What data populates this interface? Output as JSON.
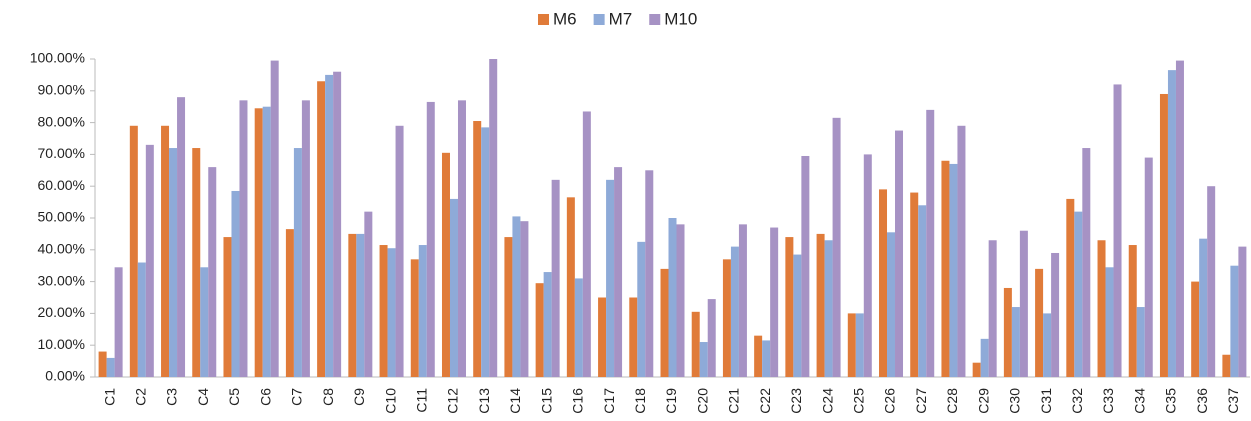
{
  "chart_data": {
    "type": "bar",
    "categories": [
      "C1",
      "C2",
      "C3",
      "C4",
      "C5",
      "C6",
      "C7",
      "C8",
      "C9",
      "C10",
      "C11",
      "C12",
      "C13",
      "C14",
      "C15",
      "C16",
      "C17",
      "C18",
      "C19",
      "C20",
      "C21",
      "C22",
      "C23",
      "C24",
      "C25",
      "C26",
      "C27",
      "C28",
      "C29",
      "C30",
      "C31",
      "C32",
      "C33",
      "C34",
      "C35",
      "C36",
      "C37"
    ],
    "series": [
      {
        "name": "M6",
        "color": "#e07b39",
        "values": [
          8,
          79,
          79,
          72,
          44,
          84.5,
          46.5,
          93,
          45,
          41.5,
          37,
          70.5,
          80.5,
          44,
          29.5,
          56.5,
          25,
          25,
          34,
          20.5,
          37,
          13,
          44,
          45,
          20,
          59,
          58,
          68,
          4.5,
          28,
          34,
          56,
          43,
          41.5,
          89,
          30,
          7
        ]
      },
      {
        "name": "M7",
        "color": "#8eaad8",
        "values": [
          6,
          36,
          72,
          34.5,
          58.5,
          85,
          72,
          95,
          45,
          40.5,
          41.5,
          56,
          78.5,
          50.5,
          33,
          31,
          62,
          42.5,
          50,
          11,
          41,
          11.5,
          38.5,
          43,
          20,
          45.5,
          54,
          67,
          12,
          22,
          20,
          52,
          34.5,
          22,
          96.5,
          43.5,
          35
        ]
      },
      {
        "name": "M10",
        "color": "#a692c4",
        "values": [
          34.5,
          73,
          88,
          66,
          87,
          99.5,
          87,
          96,
          52,
          79,
          86.5,
          87,
          100,
          49,
          62,
          83.5,
          66,
          65,
          48,
          24.5,
          48,
          47,
          69.5,
          81.5,
          70,
          77.5,
          84,
          79,
          43,
          46,
          39,
          72,
          92,
          69,
          99.5,
          60,
          41
        ]
      }
    ],
    "ylim": [
      0,
      100
    ],
    "yticks": [
      {
        "value": 0,
        "label": "0.00%"
      },
      {
        "value": 10,
        "label": "10.00%"
      },
      {
        "value": 20,
        "label": "20.00%"
      },
      {
        "value": 30,
        "label": "30.00%"
      },
      {
        "value": 40,
        "label": "40.00%"
      },
      {
        "value": 50,
        "label": "50.00%"
      },
      {
        "value": 60,
        "label": "60.00%"
      },
      {
        "value": 70,
        "label": "70.00%"
      },
      {
        "value": 80,
        "label": "80.00%"
      },
      {
        "value": 90,
        "label": "90.00%"
      },
      {
        "value": 100,
        "label": "100.00%"
      }
    ],
    "legend": "top"
  }
}
